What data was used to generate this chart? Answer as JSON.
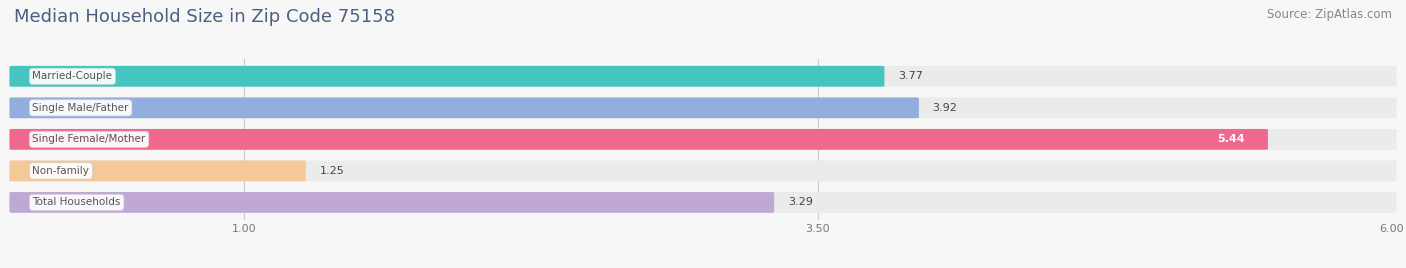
{
  "title": "Median Household Size in Zip Code 75158",
  "source": "Source: ZipAtlas.com",
  "categories": [
    "Married-Couple",
    "Single Male/Father",
    "Single Female/Mother",
    "Non-family",
    "Total Households"
  ],
  "values": [
    3.77,
    3.92,
    5.44,
    1.25,
    3.29
  ],
  "bar_colors": [
    "#45C4C0",
    "#92AEDE",
    "#F0688E",
    "#F5C898",
    "#C0A8D4"
  ],
  "bar_bg_color": "#ebebeb",
  "xmin": 0.0,
  "xmax": 6.0,
  "xlim_display": [
    0.0,
    6.0
  ],
  "xticks": [
    1.0,
    3.5,
    6.0
  ],
  "xtick_labels": [
    "1.00",
    "3.50",
    "6.00"
  ],
  "title_fontsize": 13,
  "source_fontsize": 8.5,
  "label_fontsize": 7.5,
  "value_fontsize": 8,
  "background_color": "#f7f7f7",
  "bar_height": 0.62,
  "bar_gap": 0.38,
  "title_color": "#4a6080",
  "value_label_color": "#444444",
  "grid_color": "#cccccc",
  "label_bg_color": "#ffffff",
  "label_text_color": "#555555"
}
